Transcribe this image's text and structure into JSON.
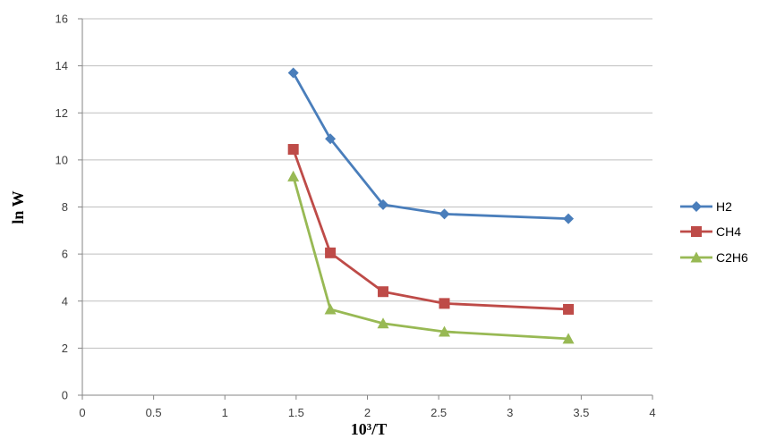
{
  "chart_data": {
    "type": "line",
    "title": "",
    "xlabel": "10³/T",
    "ylabel": "ln W",
    "xlim": [
      0,
      4
    ],
    "ylim": [
      0,
      16
    ],
    "x_ticks": [
      "0",
      "0.5",
      "1",
      "1.5",
      "2",
      "2.5",
      "3",
      "3.5",
      "4"
    ],
    "y_ticks": [
      "0",
      "2",
      "4",
      "6",
      "8",
      "10",
      "12",
      "14",
      "16"
    ],
    "grid": false,
    "legend_position": "right",
    "series": [
      {
        "name": "H2",
        "color": "#4a7ebb",
        "marker": "diamond",
        "x": [
          1.48,
          1.74,
          2.11,
          2.54,
          3.41
        ],
        "y": [
          13.7,
          10.9,
          8.1,
          7.7,
          7.5
        ]
      },
      {
        "name": "CH4",
        "color": "#be4b48",
        "marker": "square",
        "x": [
          1.48,
          1.74,
          2.11,
          2.54,
          3.41
        ],
        "y": [
          10.45,
          6.05,
          4.4,
          3.9,
          3.65
        ]
      },
      {
        "name": "C2H6",
        "color": "#98b954",
        "marker": "triangle",
        "x": [
          1.48,
          1.74,
          2.11,
          2.54,
          3.41
        ],
        "y": [
          9.3,
          3.65,
          3.05,
          2.7,
          2.4
        ]
      }
    ]
  }
}
